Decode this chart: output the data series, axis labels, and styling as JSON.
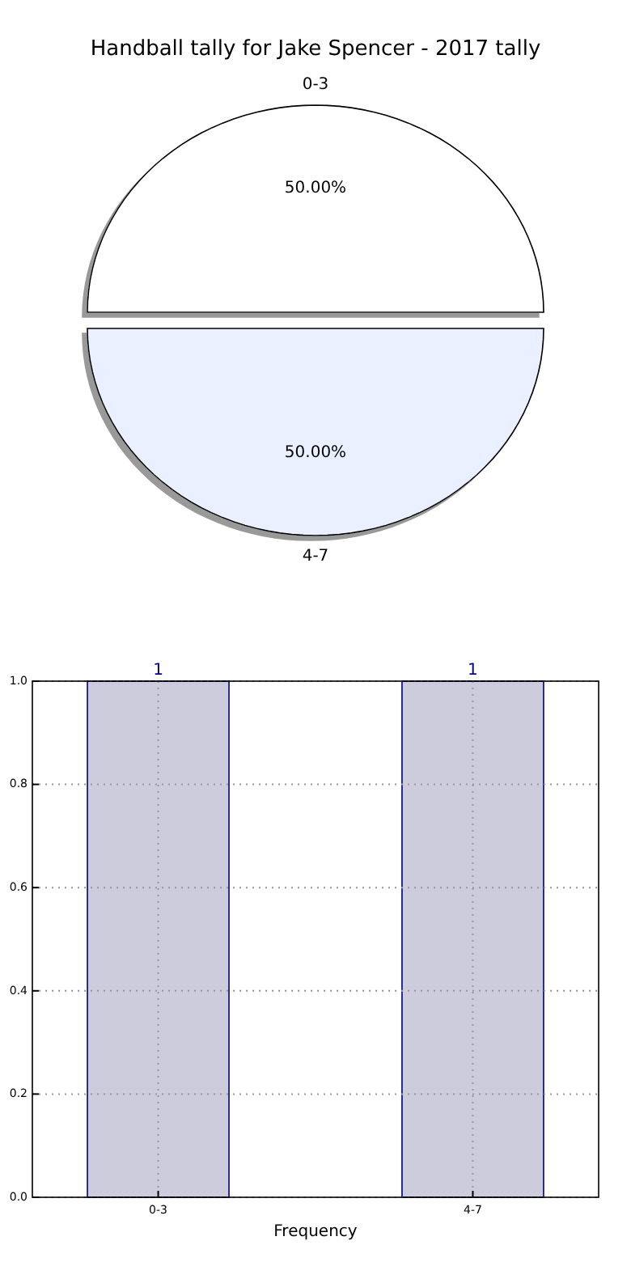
{
  "chart_data": [
    {
      "type": "pie",
      "title": "Handball tally for Jake Spencer - 2017 tally",
      "categories": [
        "0-3",
        "4-7"
      ],
      "values": [
        50,
        50
      ],
      "colors": [
        "#ffffff",
        "#eaf0ff"
      ],
      "value_labels": [
        "50.00%",
        "50.00%"
      ]
    },
    {
      "type": "bar",
      "categories": [
        "0-3",
        "4-7"
      ],
      "values": [
        1,
        1
      ],
      "color": "#ccccdd",
      "ylim": [
        0,
        1
      ],
      "yticks": [
        {
          "value": 0,
          "label": "0.0"
        },
        {
          "value": 0.2,
          "label": "0.2"
        },
        {
          "value": 0.4,
          "label": "0.4"
        },
        {
          "value": 0.6,
          "label": "0.6"
        },
        {
          "value": 0.8,
          "label": "0.8"
        },
        {
          "value": 1,
          "label": "1.0"
        }
      ],
      "xlabel": "Frequency",
      "grid": true,
      "data_labels": true
    }
  ]
}
